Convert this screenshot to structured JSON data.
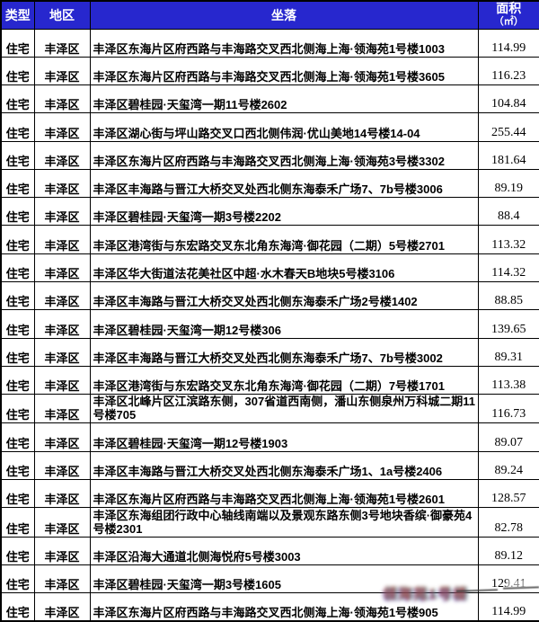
{
  "table": {
    "headers": {
      "type": "类型",
      "district": "地区",
      "location": "坐落",
      "area_line1": "面积",
      "area_line2": "（㎡）"
    },
    "rows": [
      {
        "type": "住宅",
        "district": "丰泽区",
        "location": "丰泽区东海片区府西路与丰海路交叉西北侧海上海·领海苑1号楼1003",
        "area": "114.99"
      },
      {
        "type": "住宅",
        "district": "丰泽区",
        "location": "丰泽区东海片区府西路与丰海路交叉西北侧海上海·领海苑1号楼3605",
        "area": "116.23"
      },
      {
        "type": "住宅",
        "district": "丰泽区",
        "location": "丰泽区碧桂园·天玺湾一期11号楼2602",
        "area": "104.84"
      },
      {
        "type": "住宅",
        "district": "丰泽区",
        "location": "丰泽区湖心街与坪山路交叉口西北侧伟润·优山美地14号楼14-04",
        "area": "255.44"
      },
      {
        "type": "住宅",
        "district": "丰泽区",
        "location": "丰泽区东海片区府西路与丰海路交叉西北侧海上海·领海苑3号楼3302",
        "area": "181.64"
      },
      {
        "type": "住宅",
        "district": "丰泽区",
        "location": "丰泽区丰海路与晋江大桥交叉处西北侧东海泰禾广场7、7b号楼3006",
        "area": "89.19"
      },
      {
        "type": "住宅",
        "district": "丰泽区",
        "location": "丰泽区碧桂园·天玺湾一期3号楼2202",
        "area": "88.4"
      },
      {
        "type": "住宅",
        "district": "丰泽区",
        "location": "丰泽区港湾街与东宏路交叉东北角东海湾·御花园（二期）5号楼2701",
        "area": "113.32"
      },
      {
        "type": "住宅",
        "district": "丰泽区",
        "location": "丰泽区华大街道法花美社区中超·水木春天B地块5号楼3106",
        "area": "114.32"
      },
      {
        "type": "住宅",
        "district": "丰泽区",
        "location": "丰泽区丰海路与晋江大桥交叉处西北侧东海泰禾广场2号楼1402",
        "area": "88.85"
      },
      {
        "type": "住宅",
        "district": "丰泽区",
        "location": "丰泽区碧桂园·天玺湾一期12号楼306",
        "area": "139.65"
      },
      {
        "type": "住宅",
        "district": "丰泽区",
        "location": "丰泽区丰海路与晋江大桥交叉处西北侧东海泰禾广场7、7b号楼3002",
        "area": "89.31"
      },
      {
        "type": "住宅",
        "district": "丰泽区",
        "location": "丰泽区港湾街与东宏路交叉东北角东海湾·御花园（二期）7号楼1701",
        "area": "113.38"
      },
      {
        "type": "住宅",
        "district": "丰泽区",
        "location": "丰泽区北峰片区江滨路东侧，307省道西南侧，潘山东侧泉州万科城二期11号楼705",
        "area": "116.73"
      },
      {
        "type": "住宅",
        "district": "丰泽区",
        "location": "丰泽区碧桂园·天玺湾一期12号楼1903",
        "area": "89.07"
      },
      {
        "type": "住宅",
        "district": "丰泽区",
        "location": "丰泽区丰海路与晋江大桥交叉处西北侧东海泰禾广场1、1a号楼2406",
        "area": "89.24"
      },
      {
        "type": "住宅",
        "district": "丰泽区",
        "location": "丰泽区东海片区府西路与丰海路交叉西北侧海上海·领海苑1号楼2601",
        "area": "128.57"
      },
      {
        "type": "住宅",
        "district": "丰泽区",
        "location": "丰泽区东海组团行政中心轴线南端以及景观东路东侧3号地块香缤·御豪苑4号楼2301",
        "area": "82.78"
      },
      {
        "type": "住宅",
        "district": "丰泽区",
        "location": "丰泽区沿海大通道北侧海悦府5号楼3003",
        "area": "89.12"
      },
      {
        "type": "住宅",
        "district": "丰泽区",
        "location": "丰泽区碧桂园·天玺湾一期3号楼1605",
        "area": "129.41"
      },
      {
        "type": "住宅",
        "district": "丰泽区",
        "location": "丰泽区东海片区府西路与丰海路交叉西北侧海上海·领海苑1号楼905",
        "area": "114.99"
      }
    ]
  },
  "watermark": {
    "text": "领海苑1号楼"
  },
  "colors": {
    "header_bg": "#2727ce",
    "header_text": "#ffffff",
    "border": "#000000"
  }
}
